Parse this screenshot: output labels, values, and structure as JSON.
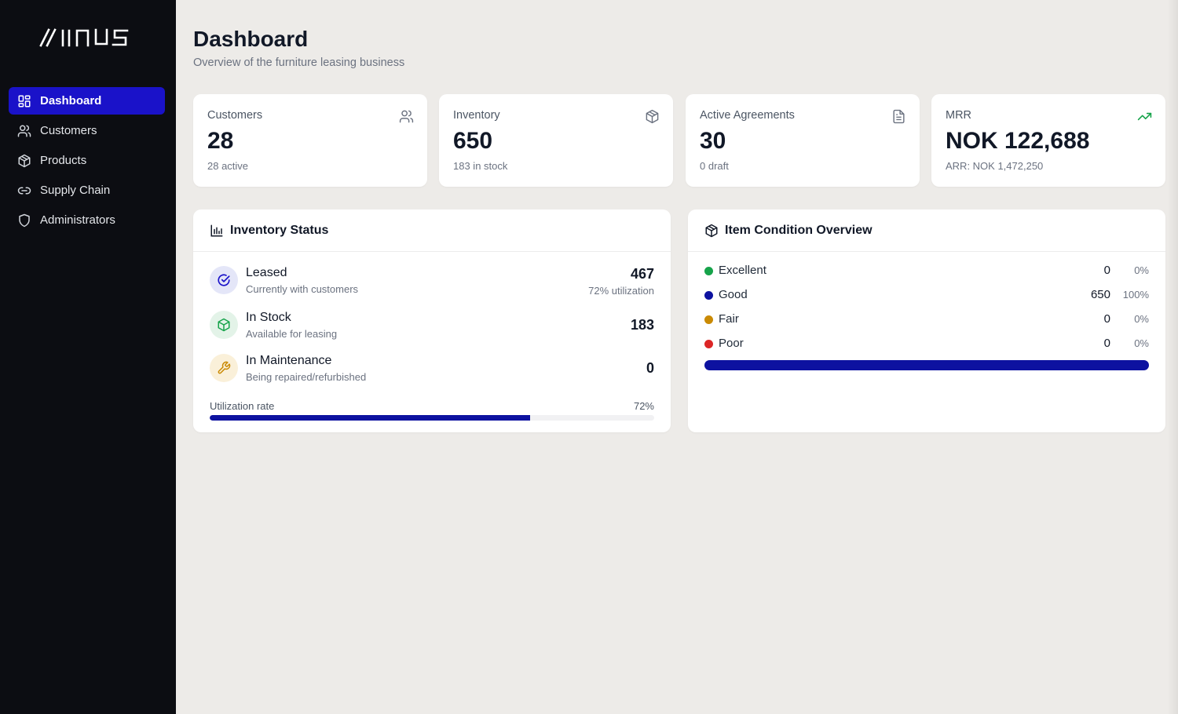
{
  "brand": {
    "logo_text": "MINUS"
  },
  "sidebar": {
    "items": [
      {
        "label": "Dashboard",
        "icon": "dashboard-grid-icon",
        "active": true
      },
      {
        "label": "Customers",
        "icon": "users-icon",
        "active": false
      },
      {
        "label": "Products",
        "icon": "box-icon",
        "active": false
      },
      {
        "label": "Supply Chain",
        "icon": "link-icon",
        "active": false
      },
      {
        "label": "Administrators",
        "icon": "shield-icon",
        "active": false
      }
    ]
  },
  "header": {
    "title": "Dashboard",
    "subtitle": "Overview of the furniture leasing business"
  },
  "stats": [
    {
      "label": "Customers",
      "value": "28",
      "sub": "28 active",
      "icon": "users-icon"
    },
    {
      "label": "Inventory",
      "value": "650",
      "sub": "183 in stock",
      "icon": "box-icon"
    },
    {
      "label": "Active Agreements",
      "value": "30",
      "sub": "0 draft",
      "icon": "document-icon"
    },
    {
      "label": "MRR",
      "value": "NOK 122,688",
      "sub": "ARR: NOK 1,472,250",
      "icon": "trending-up-icon"
    }
  ],
  "inventory_status": {
    "title": "Inventory Status",
    "icon": "bar-chart-icon",
    "rows": [
      {
        "title": "Leased",
        "desc": "Currently with customers",
        "value": "467",
        "note": "72% utilization",
        "icon": "check-circle-icon"
      },
      {
        "title": "In Stock",
        "desc": "Available for leasing",
        "value": "183",
        "note": "",
        "icon": "box-icon"
      },
      {
        "title": "In Maintenance",
        "desc": "Being repaired/refurbished",
        "value": "0",
        "note": "",
        "icon": "wrench-icon"
      }
    ],
    "utilization_label": "Utilization rate",
    "utilization_pct_text": "72%",
    "utilization_fraction": 0.72
  },
  "condition": {
    "title": "Item Condition Overview",
    "icon": "box-icon",
    "rows": [
      {
        "name": "Excellent",
        "count": "0",
        "pct": "0%",
        "fraction": 0,
        "color": "#16a34a"
      },
      {
        "name": "Good",
        "count": "650",
        "pct": "100%",
        "fraction": 1,
        "color": "#0d12a0"
      },
      {
        "name": "Fair",
        "count": "0",
        "pct": "0%",
        "fraction": 0,
        "color": "#ca8a04"
      },
      {
        "name": "Poor",
        "count": "0",
        "pct": "0%",
        "fraction": 0,
        "color": "#dc2626"
      }
    ]
  },
  "colors": {
    "sidebar_bg": "#0c0d12",
    "accent": "#1a12c9",
    "bar": "#0d12a0",
    "trend_green": "#16a34a"
  }
}
